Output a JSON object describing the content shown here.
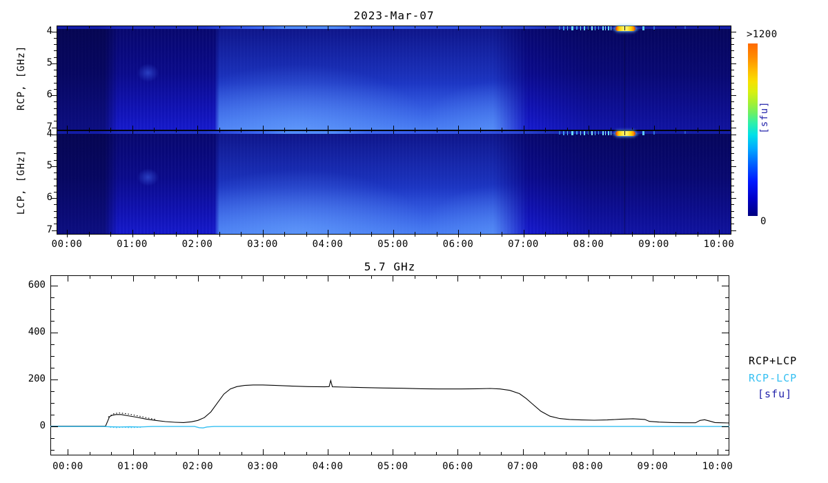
{
  "figure": {
    "title": "2023-Mar-07",
    "panels": [
      {
        "ylabel": "RCP, [GHz]",
        "ytick_labels": [
          "4",
          "5",
          "6",
          "7"
        ]
      },
      {
        "ylabel": "LCP, [GHz]",
        "ytick_labels": [
          "4",
          "5",
          "6",
          "7"
        ]
      }
    ],
    "xtick_labels": [
      "00:00",
      "01:00",
      "02:00",
      "03:00",
      "04:00",
      "05:00",
      "06:00",
      "07:00",
      "08:00",
      "09:00",
      "10:00"
    ],
    "colorbar": {
      "top_label": ">1200",
      "bottom_label": "0",
      "unit_label": "[sfu]",
      "unit_color": "#2222AA"
    }
  },
  "timeseries": {
    "title": "5.7 GHz",
    "ytick_labels": [
      "0",
      "200",
      "400",
      "600"
    ],
    "xtick_labels": [
      "00:00",
      "01:00",
      "02:00",
      "03:00",
      "04:00",
      "05:00",
      "06:00",
      "07:00",
      "08:00",
      "09:00",
      "10:00"
    ],
    "legend": [
      {
        "label": "RCP+LCP",
        "color": "#000000"
      },
      {
        "label": "RCP-LCP",
        "color": "#33BFF2"
      },
      {
        "label": "[sfu]",
        "color": "#2222AA"
      }
    ]
  },
  "chart_data": [
    {
      "type": "heatmap",
      "title": "2023-Mar-07",
      "description": "Microwave dynamic spectrogram, RCP (top panel) and LCP (bottom panel), frequency 4-7 GHz increasing downward, time 00:00-10:12 UT",
      "x_ticks_hours": [
        0,
        1,
        2,
        3,
        4,
        5,
        6,
        7,
        8,
        9,
        10
      ],
      "x_tick_labels": [
        "00:00",
        "01:00",
        "02:00",
        "03:00",
        "04:00",
        "05:00",
        "06:00",
        "07:00",
        "08:00",
        "09:00",
        "10:00"
      ],
      "x_minor_step_hours": 0.3333,
      "y_ticks_ghz": [
        4,
        5,
        6,
        7
      ],
      "y_minor_step_ghz": 0.2,
      "y_range_ghz": [
        3.82,
        7.1
      ],
      "colorbar_range_sfu": [
        0,
        1200
      ],
      "features": [
        "dark navy quiet background, darkest before 00:40 and after 07:30",
        "enhanced blue emission block 02:20-07:00, brightest toward 7 GHz around 03:00-04:30 and 06:30-07:00",
        "thin brighter stripe along 4 GHz top edge of both panels",
        "narrowband cyan burst streaks near 4 GHz between 07:40 and 08:20 in both panels",
        "strong burst >1200 sfu (yellow-orange bar with red ends) near 4 GHz at 08:25-08:43 in both RCP and LCP",
        "small cyan burst near 08:50 and faint one near 09:00"
      ],
      "burst": {
        "streaks": [
          [
            40.0,
            1,
            3,
            "#4C86F8"
          ],
          [
            74.4,
            2,
            5,
            "#2E6FD8"
          ],
          [
            75.1,
            2,
            6,
            "#3F9AEE"
          ],
          [
            75.7,
            1,
            6,
            "#5FC8F8"
          ],
          [
            76.3,
            3,
            6,
            "#6ADAFB"
          ],
          [
            77.0,
            2,
            5,
            "#3F9AEE"
          ],
          [
            77.6,
            1,
            6,
            "#86E8FD"
          ],
          [
            78.1,
            2,
            6,
            "#6ADAFB"
          ],
          [
            78.7,
            1,
            5,
            "#45AAF2"
          ],
          [
            79.2,
            2,
            6,
            "#86E8FD"
          ],
          [
            79.8,
            1,
            6,
            "#5FC8F8"
          ],
          [
            80.3,
            1,
            5,
            "#45AAF2"
          ],
          [
            80.9,
            2,
            6,
            "#74DFFC"
          ],
          [
            81.3,
            1,
            6,
            "#97EEFF"
          ],
          [
            81.7,
            2,
            6,
            "#6ADAFB"
          ],
          [
            82.1,
            1,
            6,
            "#86E8FD"
          ],
          [
            86.8,
            3,
            6,
            "#5FC8F8"
          ],
          [
            88.4,
            2,
            5,
            "#2E6FD8"
          ],
          [
            93.0,
            2,
            4,
            "#2B55C8"
          ]
        ],
        "blob": {
          "left_pct": 82.8,
          "width_pct": 3.0,
          "center_tick_pct": 84.2
        }
      }
    },
    {
      "type": "line",
      "title": "5.7 GHz",
      "xlim_hours": [
        -0.27,
        10.18
      ],
      "ylim_sfu": [
        -123,
        644
      ],
      "yticks": [
        0,
        200,
        400,
        600
      ],
      "y_minor_step": 50,
      "x_ticks_hours": [
        0,
        1,
        2,
        3,
        4,
        5,
        6,
        7,
        8,
        9,
        10
      ],
      "unit": "sfu",
      "series": [
        {
          "name": "RCP+LCP",
          "color": "#000000",
          "width": 1.1,
          "dotted": false,
          "points": [
            [
              -0.27,
              2
            ],
            [
              0.3,
              2
            ],
            [
              0.58,
              2
            ],
            [
              0.61,
              22
            ],
            [
              0.64,
              42
            ],
            [
              0.68,
              48
            ],
            [
              0.74,
              51
            ],
            [
              0.82,
              51
            ],
            [
              0.92,
              46
            ],
            [
              1.05,
              40
            ],
            [
              1.2,
              32
            ],
            [
              1.35,
              26
            ],
            [
              1.5,
              21
            ],
            [
              1.65,
              18
            ],
            [
              1.78,
              17
            ],
            [
              1.9,
              20
            ],
            [
              2.0,
              26
            ],
            [
              2.1,
              38
            ],
            [
              2.2,
              62
            ],
            [
              2.3,
              100
            ],
            [
              2.4,
              138
            ],
            [
              2.5,
              160
            ],
            [
              2.6,
              170
            ],
            [
              2.72,
              175
            ],
            [
              2.85,
              177
            ],
            [
              3.0,
              177
            ],
            [
              3.2,
              175
            ],
            [
              3.45,
              172
            ],
            [
              3.7,
              170
            ],
            [
              3.95,
              169
            ],
            [
              4.02,
              170
            ],
            [
              4.045,
              196
            ],
            [
              4.07,
              169
            ],
            [
              4.25,
              168
            ],
            [
              4.55,
              166
            ],
            [
              4.85,
              164
            ],
            [
              5.15,
              163
            ],
            [
              5.45,
              161
            ],
            [
              5.75,
              160
            ],
            [
              6.05,
              160
            ],
            [
              6.3,
              161
            ],
            [
              6.5,
              162
            ],
            [
              6.65,
              160
            ],
            [
              6.8,
              154
            ],
            [
              6.95,
              140
            ],
            [
              7.05,
              120
            ],
            [
              7.15,
              96
            ],
            [
              7.28,
              65
            ],
            [
              7.42,
              44
            ],
            [
              7.57,
              34
            ],
            [
              7.72,
              30
            ],
            [
              7.9,
              28
            ],
            [
              8.1,
              27
            ],
            [
              8.3,
              28
            ],
            [
              8.5,
              31
            ],
            [
              8.7,
              33
            ],
            [
              8.88,
              30
            ],
            [
              8.95,
              22
            ],
            [
              9.1,
              19
            ],
            [
              9.3,
              17
            ],
            [
              9.5,
              16
            ],
            [
              9.66,
              16
            ],
            [
              9.73,
              26
            ],
            [
              9.8,
              29
            ],
            [
              9.88,
              23
            ],
            [
              9.96,
              17
            ],
            [
              10.05,
              16
            ],
            [
              10.18,
              15
            ]
          ]
        },
        {
          "name": "RCP+LCP scatter",
          "color": "#000000",
          "width": 1.2,
          "dotted": true,
          "points": [
            [
              0.62,
              40
            ],
            [
              0.7,
              54
            ],
            [
              0.78,
              58
            ],
            [
              0.86,
              56
            ],
            [
              0.95,
              52
            ],
            [
              1.05,
              47
            ],
            [
              1.15,
              41
            ],
            [
              1.25,
              35
            ],
            [
              1.35,
              30
            ]
          ]
        },
        {
          "name": "RCP-LCP",
          "color": "#33BFF2",
          "width": 1.4,
          "dotted": false,
          "points": [
            [
              -0.27,
              0
            ],
            [
              0.55,
              0
            ],
            [
              0.65,
              -1
            ],
            [
              0.8,
              -2
            ],
            [
              0.95,
              -1
            ],
            [
              1.1,
              -2
            ],
            [
              1.3,
              0
            ],
            [
              1.95,
              0
            ],
            [
              2.02,
              -5
            ],
            [
              2.08,
              -6
            ],
            [
              2.14,
              -2
            ],
            [
              2.25,
              0
            ],
            [
              10.18,
              0
            ]
          ]
        },
        {
          "name": "RCP-LCP scatter",
          "color": "#33BFF2",
          "width": 1.2,
          "dotted": true,
          "points": [
            [
              0.65,
              -3
            ],
            [
              0.75,
              -5
            ],
            [
              0.85,
              -3
            ],
            [
              0.95,
              -5
            ],
            [
              1.05,
              -4
            ],
            [
              1.15,
              -3
            ]
          ]
        }
      ]
    }
  ]
}
